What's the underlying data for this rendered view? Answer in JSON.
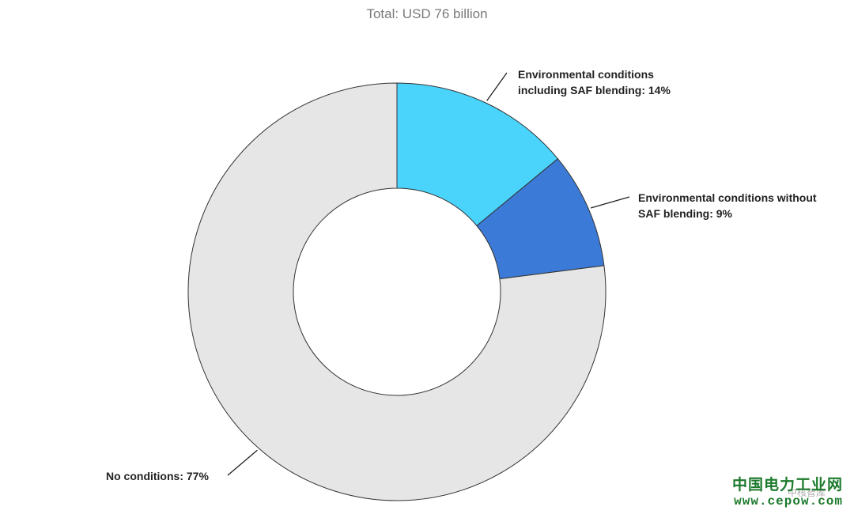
{
  "chart_data": {
    "type": "pie",
    "title": "Total: USD 76 billion",
    "donut": true,
    "slices": [
      {
        "lines": [
          "Environmental conditions",
          "including SAF blending: 14%"
        ],
        "value": 14,
        "color": "#4ad4fc"
      },
      {
        "lines": [
          "Environmental conditions without",
          "SAF blending: 9%"
        ],
        "value": 9,
        "color": "#3b7ad6"
      },
      {
        "lines": [
          "No conditions: 77%"
        ],
        "value": 77,
        "color": "#e6e6e6"
      }
    ],
    "start": "top",
    "direction": "clockwise"
  },
  "watermark": {
    "brand": "中国电力工业网",
    "sub": "中核智库",
    "url": "www.cepow.com"
  }
}
